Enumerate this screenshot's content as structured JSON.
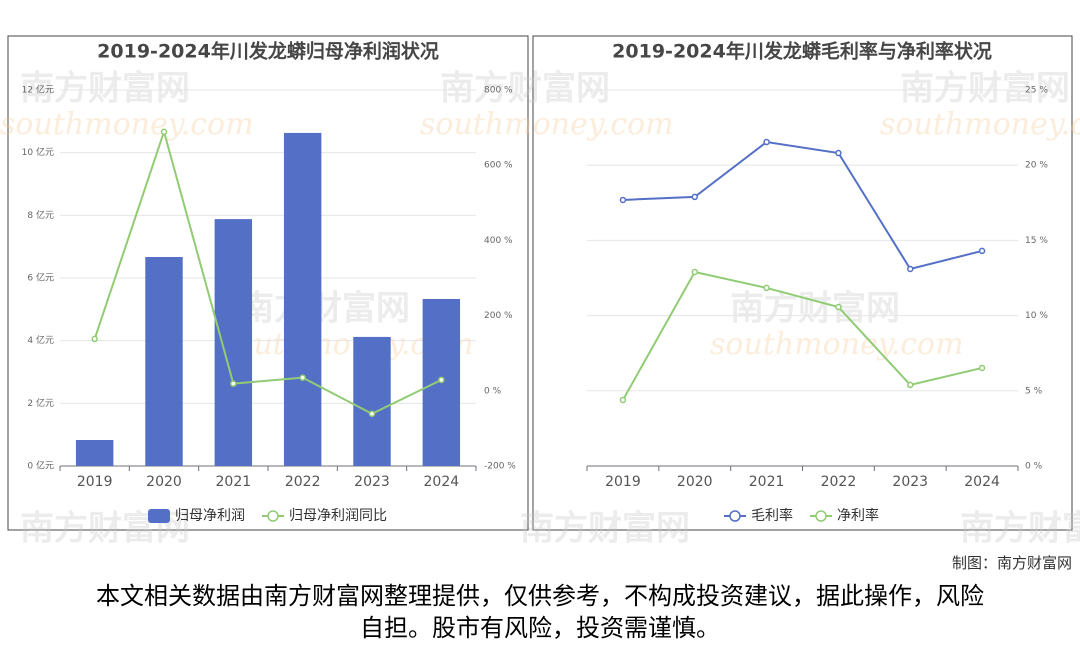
{
  "chart_data": [
    {
      "type": "combo",
      "title": "2019-2024年川发龙蟒归母净利润状况",
      "categories": [
        "2019",
        "2020",
        "2021",
        "2022",
        "2023",
        "2024"
      ],
      "ylim": [
        0,
        12
      ],
      "yticks": [
        {
          "value": 0,
          "label": "0 亿元"
        },
        {
          "value": 2,
          "label": "2 亿元"
        },
        {
          "value": 4,
          "label": "4 亿元"
        },
        {
          "value": 6,
          "label": "6 亿元"
        },
        {
          "value": 8,
          "label": "8 亿元"
        },
        {
          "value": 10,
          "label": "10 亿元"
        },
        {
          "value": 12,
          "label": "12 亿元"
        }
      ],
      "y2lim": [
        -200,
        800
      ],
      "y2ticks": [
        {
          "value": -200,
          "label": "-200 %"
        },
        {
          "value": 0,
          "label": "0 %"
        },
        {
          "value": 200,
          "label": "200 %"
        },
        {
          "value": 400,
          "label": "400 %"
        },
        {
          "value": 600,
          "label": "600 %"
        },
        {
          "value": 800,
          "label": "800 %"
        }
      ],
      "grid": true,
      "series": [
        {
          "name": "归母净利润",
          "type": "bar",
          "color": "#5470c6",
          "values": [
            0.83,
            6.67,
            7.88,
            10.63,
            4.12,
            5.33
          ]
        },
        {
          "name": "归母净利润同比",
          "type": "line",
          "color": "#91cc75",
          "axis": "y2",
          "values": [
            138,
            689,
            19,
            35,
            -61,
            29
          ]
        }
      ]
    },
    {
      "type": "line",
      "title": "2019-2024年川发龙蟒毛利率与净利率状况",
      "categories": [
        "2019",
        "2020",
        "2021",
        "2022",
        "2023",
        "2024"
      ],
      "ylim": [
        0,
        25
      ],
      "yticks": [
        {
          "value": 0,
          "label": "0 %"
        },
        {
          "value": 5,
          "label": "5 %"
        },
        {
          "value": 10,
          "label": "10 %"
        },
        {
          "value": 15,
          "label": "15 %"
        },
        {
          "value": 20,
          "label": "20 %"
        },
        {
          "value": 25,
          "label": "25 %"
        }
      ],
      "yaxis_side": "right",
      "grid": true,
      "series": [
        {
          "name": "毛利率",
          "type": "line",
          "color": "#5470c6",
          "values": [
            17.69,
            17.89,
            21.54,
            20.81,
            13.1,
            14.3
          ]
        },
        {
          "name": "净利率",
          "type": "line",
          "color": "#91cc75",
          "values": [
            4.39,
            12.9,
            11.84,
            10.57,
            5.39,
            6.52
          ]
        }
      ]
    }
  ],
  "watermark": {
    "name": "南方财富网",
    "url": "southmoney.com"
  },
  "credit": "制图：南方财富网",
  "disclaimer": "本文相关数据由南方财富网整理提供，仅供参考，不构成投资建议，据此操作，风险自担。股市有风险，投资需谨慎。"
}
